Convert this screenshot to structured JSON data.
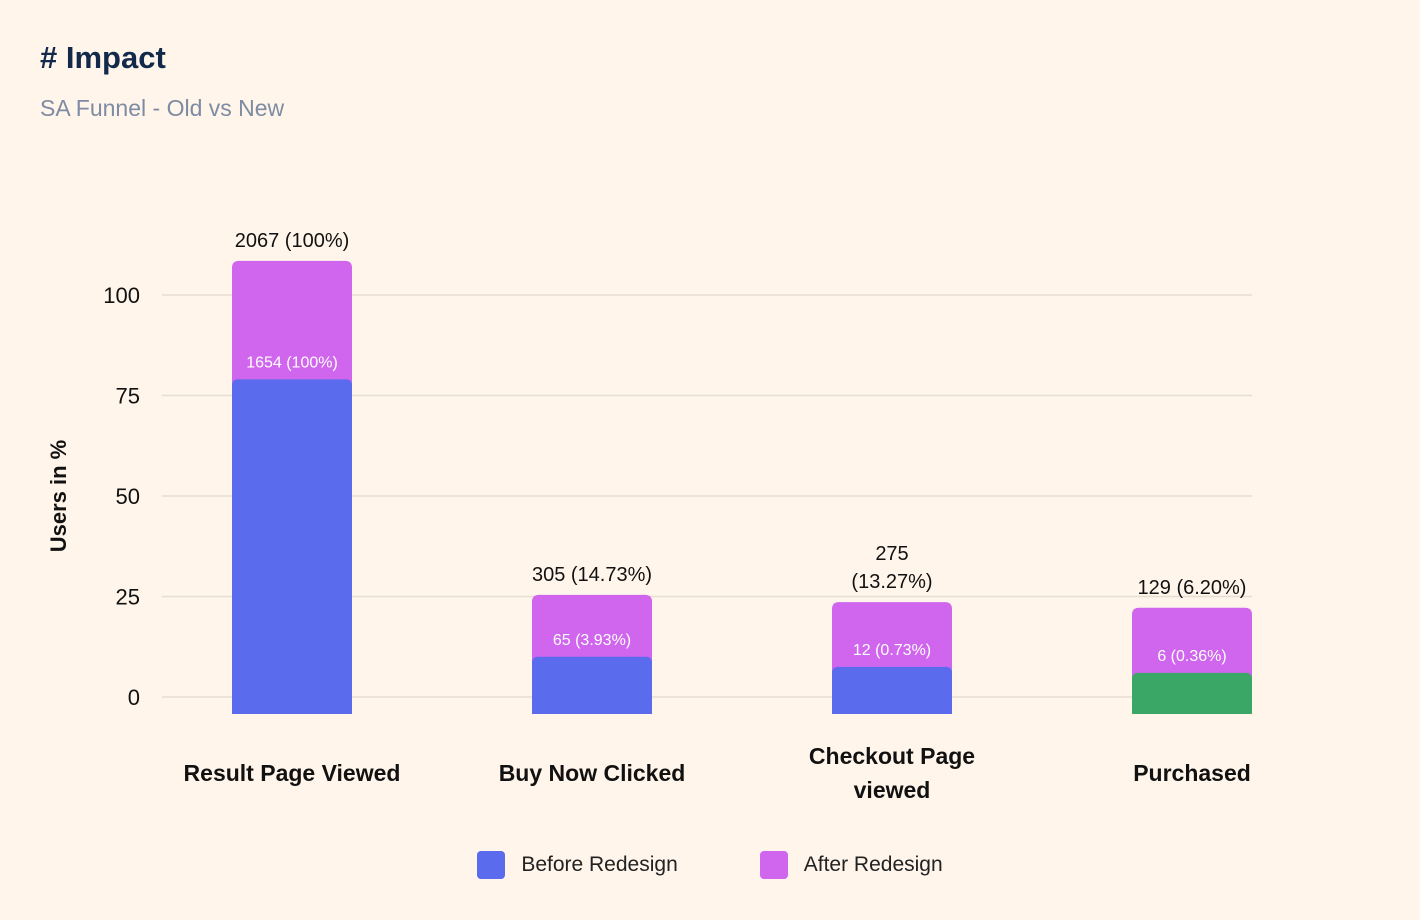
{
  "header": {
    "title": "# Impact",
    "subtitle": "SA Funnel - Old vs New"
  },
  "colors": {
    "before": "#5a6ced",
    "after": "#d065ee",
    "purchased_before": "#3aa767",
    "grid": "#e6ddd3",
    "background": "#fff5ea",
    "text": "#111111",
    "inner_label": "#ffffff"
  },
  "chart_data": {
    "type": "bar",
    "title": "SA Funnel - Old vs New",
    "xlabel": "",
    "ylabel": "Users in %",
    "ylim": [
      0,
      100
    ],
    "yticks": [
      0,
      25,
      50,
      75,
      100
    ],
    "grid": true,
    "legend_position": "bottom-center",
    "categories": [
      [
        "Result Page Viewed"
      ],
      [
        "Buy Now Clicked"
      ],
      [
        "Checkout Page",
        "viewed"
      ],
      [
        "Purchased"
      ]
    ],
    "series": [
      {
        "name": "Before Redesign",
        "values": [
          79,
          10,
          7.5,
          6
        ],
        "labels": [
          "1654 (100%)",
          "65 (3.93%)",
          "12 (0.73%)",
          "6 (0.36%)"
        ]
      },
      {
        "name": "After Redesign",
        "values": [
          29.5,
          15.4,
          16.1,
          16.2
        ],
        "labels": [
          [
            "2067 (100%)"
          ],
          [
            "305 (14.73%)"
          ],
          [
            "275",
            "(13.27%)"
          ],
          [
            "129 (6.20%)"
          ]
        ]
      }
    ]
  }
}
